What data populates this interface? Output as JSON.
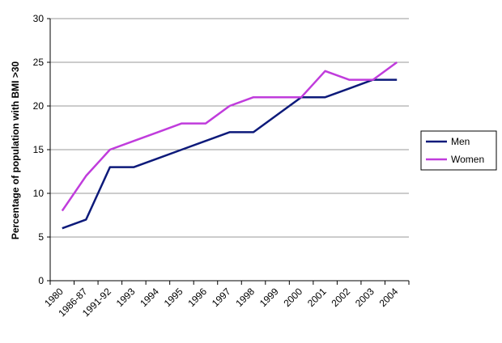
{
  "chart_data": {
    "type": "line",
    "title": "",
    "xlabel": "",
    "ylabel": "Percentage of population with BMI >30",
    "categories": [
      "1980",
      "1986-87",
      "1991-92",
      "1993",
      "1994",
      "1995",
      "1996",
      "1997",
      "1998",
      "1999",
      "2000",
      "2001",
      "2002",
      "2003",
      "2004"
    ],
    "ylim": [
      0,
      30
    ],
    "yticks": [
      0,
      5,
      10,
      15,
      20,
      25,
      30
    ],
    "grid": true,
    "legend_position": "right",
    "series": [
      {
        "name": "Men",
        "color": "#0d1a7a",
        "values": [
          6,
          7,
          13,
          13,
          14,
          15,
          16,
          17,
          17,
          19,
          21,
          21,
          22,
          23,
          23
        ]
      },
      {
        "name": "Women",
        "color": "#c03cdc",
        "values": [
          8,
          12,
          15,
          16,
          17,
          18,
          18,
          20,
          21,
          21,
          21,
          24,
          23,
          23,
          25
        ]
      }
    ]
  }
}
